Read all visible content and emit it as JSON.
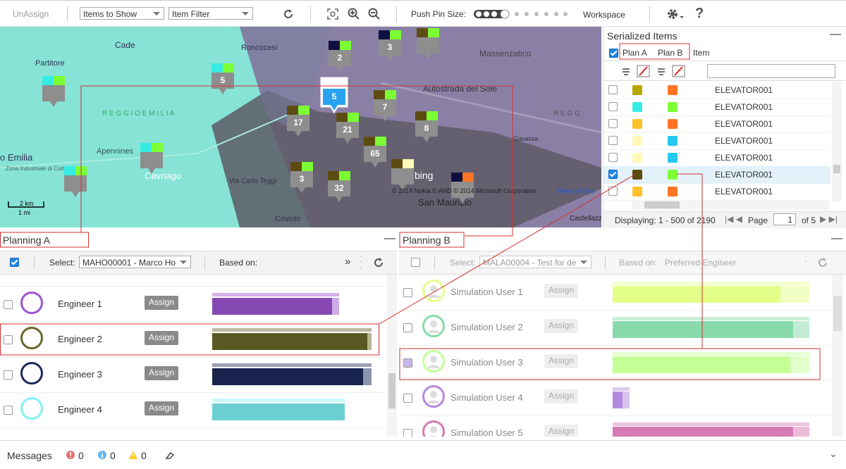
{
  "toolbar": {
    "unassign": "UnAssign",
    "items_to_show": "Items to Show",
    "item_filter": "Item Filter",
    "push_pin_size": "Push Pin Size:",
    "workspace": "Workspace",
    "help": "?"
  },
  "map": {
    "labels": [
      "Cade",
      "Partitore",
      "Roncocesi",
      "Massenzatico",
      "Autostrada del Sole",
      "R E G G I O   E M I L I A",
      "R E G G",
      "Apennines",
      "o Emilia",
      "Zona Industriale di Corte Tegge",
      "Via Carlo Teggi",
      "San Maurizio",
      "Coviolo",
      "Castellazzo",
      "Gavassa",
      "Cavriago"
    ],
    "pins": [
      5,
      5,
      2,
      3,
      7,
      17,
      21,
      8,
      65,
      3,
      32
    ],
    "scale": [
      "2 km",
      "1 mi"
    ],
    "logo": "bing",
    "copyright": "© 2014 Nokia © AND © 2014 Microsoft Corporation",
    "terms": "Terms of Use"
  },
  "serialized_items": {
    "title": "Serialized Items",
    "columns": [
      "Plan A",
      "Plan B",
      "Item"
    ],
    "rows": [
      {
        "item": "ELEVATOR001",
        "checked": false,
        "plan_a_color": "#b8a600",
        "plan_b_color": "#ff7425"
      },
      {
        "item": "ELEVATOR001",
        "checked": false,
        "plan_a_color": "#35ece4",
        "plan_b_color": "#7cff34"
      },
      {
        "item": "ELEVATOR001",
        "checked": false,
        "plan_a_color": "#ffc12a",
        "plan_b_color": "#ff7425"
      },
      {
        "item": "ELEVATOR001",
        "checked": false,
        "plan_a_color": "#fff8b8",
        "plan_b_color": "#25c8f2"
      },
      {
        "item": "ELEVATOR001",
        "checked": false,
        "plan_a_color": "#fff8b8",
        "plan_b_color": "#25c8f2"
      },
      {
        "item": "ELEVATOR001",
        "checked": true,
        "plan_a_color": "#5c4c12",
        "plan_b_color": "#7cff34"
      },
      {
        "item": "ELEVATOR001",
        "checked": false,
        "plan_a_color": "#ffc12a",
        "plan_b_color": "#ff7425"
      }
    ],
    "footer": {
      "displaying": "Displaying: 1 - 500 of 2190",
      "page": "Page",
      "page_input": "1",
      "of": "of 5"
    }
  },
  "planning_a": {
    "title": "Planning A",
    "select_label": "Select:",
    "select_value": "MAHO00001 - Marco Ho",
    "based_on": "Based on:",
    "rows": [
      {
        "name": "Engineer 1",
        "button": "Assign",
        "color": "#9c55d2"
      },
      {
        "name": "Engineer 2",
        "button": "Assign",
        "color": "#6a6828"
      },
      {
        "name": "Engineer 3",
        "button": "Assign",
        "color": "#1c2a5c"
      },
      {
        "name": "Engineer 4",
        "button": "Assign",
        "color": "#80f3f6"
      }
    ]
  },
  "planning_b": {
    "title": "Planning B",
    "select_label": "Select:",
    "select_value": "MALA00004 - Test for de",
    "based_on": "Based on:",
    "based_on_value": "Preferred Engineer",
    "rows": [
      {
        "name": "Simulation User 1",
        "button": "Assign",
        "color": "#e3ff8a"
      },
      {
        "name": "Simulation User 2",
        "button": "Assign",
        "color": "#88daab"
      },
      {
        "name": "Simulation User 3",
        "button": "Assign",
        "color": "#c4ff96"
      },
      {
        "name": "Simulation User 4",
        "button": "Assign",
        "color": "#b48ae0"
      },
      {
        "name": "Simulation User 5",
        "button": "Assign",
        "color": "#d67ab6"
      }
    ]
  },
  "status": {
    "messages": "Messages",
    "errors": "0",
    "info": "0",
    "warnings": "0"
  }
}
